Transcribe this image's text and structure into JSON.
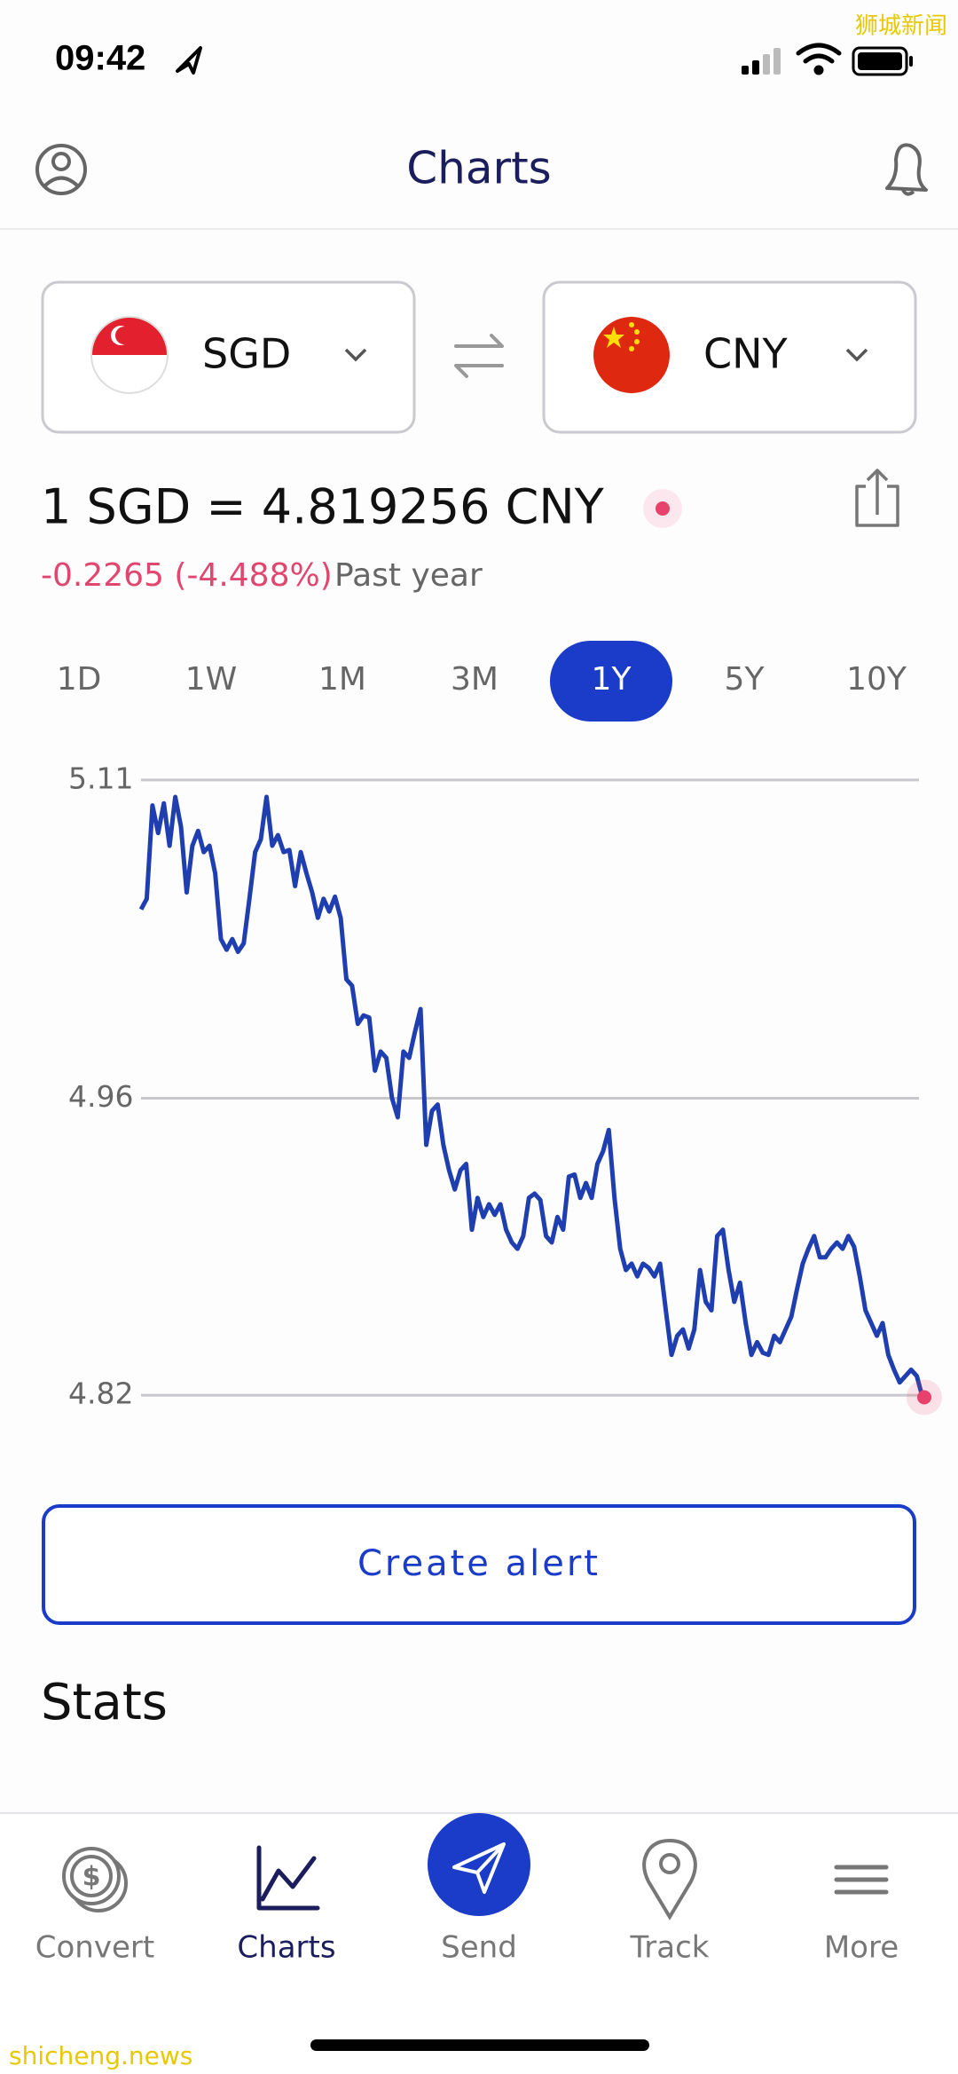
{
  "status_bar": {
    "time": "09:42"
  },
  "watermarks": {
    "top": "狮城新闻",
    "bottom": "shicheng.news"
  },
  "header": {
    "title": "Charts"
  },
  "converter": {
    "from": "SGD",
    "to": "CNY"
  },
  "rate": {
    "text": "1 SGD = 4.819256 CNY",
    "change": "-0.2265 (-4.488%)",
    "period": "Past year"
  },
  "periods": [
    "1D",
    "1W",
    "1M",
    "3M",
    "1Y",
    "5Y",
    "10Y"
  ],
  "chart_data": {
    "type": "line",
    "color": "#1f3fb0",
    "marker_color": "#e8416b",
    "grid": true,
    "ylim": [
      4.81,
      5.12
    ],
    "yticks": [
      4.82,
      4.96,
      5.11
    ],
    "values": [
      5.049,
      5.054,
      5.098,
      5.085,
      5.099,
      5.079,
      5.102,
      5.088,
      5.057,
      5.079,
      5.086,
      5.076,
      5.079,
      5.066,
      5.035,
      5.03,
      5.035,
      5.029,
      5.033,
      5.054,
      5.076,
      5.082,
      5.102,
      5.079,
      5.084,
      5.076,
      5.077,
      5.06,
      5.076,
      5.066,
      5.057,
      5.045,
      5.054,
      5.048,
      5.055,
      5.045,
      5.016,
      5.013,
      4.995,
      4.999,
      4.998,
      4.973,
      4.982,
      4.979,
      4.96,
      4.951,
      4.982,
      4.979,
      4.991,
      5.002,
      4.938,
      4.954,
      4.957,
      4.938,
      4.926,
      4.917,
      4.926,
      4.929,
      4.898,
      4.913,
      4.904,
      4.91,
      4.905,
      4.91,
      4.898,
      4.892,
      4.889,
      4.895,
      4.913,
      4.915,
      4.912,
      4.895,
      4.892,
      4.904,
      4.898,
      4.923,
      4.924,
      4.913,
      4.92,
      4.913,
      4.929,
      4.935,
      4.945,
      4.913,
      4.889,
      4.879,
      4.882,
      4.876,
      4.882,
      4.88,
      4.876,
      4.882,
      4.86,
      4.839,
      4.848,
      4.851,
      4.842,
      4.851,
      4.879,
      4.864,
      4.86,
      4.895,
      4.898,
      4.879,
      4.864,
      4.873,
      4.854,
      4.839,
      4.845,
      4.84,
      4.839,
      4.848,
      4.845,
      4.851,
      4.857,
      4.87,
      4.882,
      4.889,
      4.895,
      4.885,
      4.885,
      4.889,
      4.892,
      4.889,
      4.895,
      4.89,
      4.876,
      4.86,
      4.854,
      4.848,
      4.854,
      4.839,
      4.832,
      4.826,
      4.829,
      4.832,
      4.829,
      4.819
    ]
  },
  "alert_button": {
    "label": "Create alert"
  },
  "stats": {
    "title": "Stats"
  },
  "nav": [
    "Convert",
    "Charts",
    "Send",
    "Track",
    "More"
  ]
}
